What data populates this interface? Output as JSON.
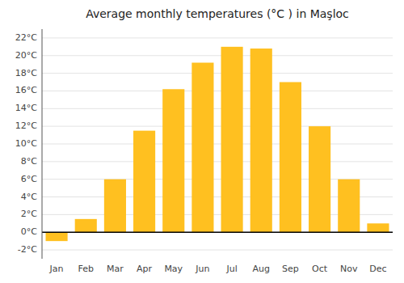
{
  "chart_data": {
    "type": "bar",
    "title": "Average monthly temperatures (°C ) in Maşloc",
    "categories": [
      "Jan",
      "Feb",
      "Mar",
      "Apr",
      "May",
      "Jun",
      "Jul",
      "Aug",
      "Sep",
      "Oct",
      "Nov",
      "Dec"
    ],
    "values": [
      -1.0,
      1.5,
      6.0,
      11.5,
      16.2,
      19.2,
      21.0,
      20.8,
      17.0,
      12.0,
      6.0,
      1.0
    ],
    "color": "#FFC020",
    "ylim": [
      -3,
      23
    ],
    "yticks": [
      {
        "value": -2,
        "label": "-2°C"
      },
      {
        "value": 0,
        "label": "0°C"
      },
      {
        "value": 2,
        "label": "2°C"
      },
      {
        "value": 4,
        "label": "4°C"
      },
      {
        "value": 6,
        "label": "6°C"
      },
      {
        "value": 8,
        "label": "8°C"
      },
      {
        "value": 10,
        "label": "10°C"
      },
      {
        "value": 12,
        "label": "12°C"
      },
      {
        "value": 14,
        "label": "14°C"
      },
      {
        "value": 16,
        "label": "16°C"
      },
      {
        "value": 18,
        "label": "18°C"
      },
      {
        "value": 20,
        "label": "20°C"
      },
      {
        "value": 22,
        "label": "22°C"
      }
    ],
    "grid": true
  }
}
